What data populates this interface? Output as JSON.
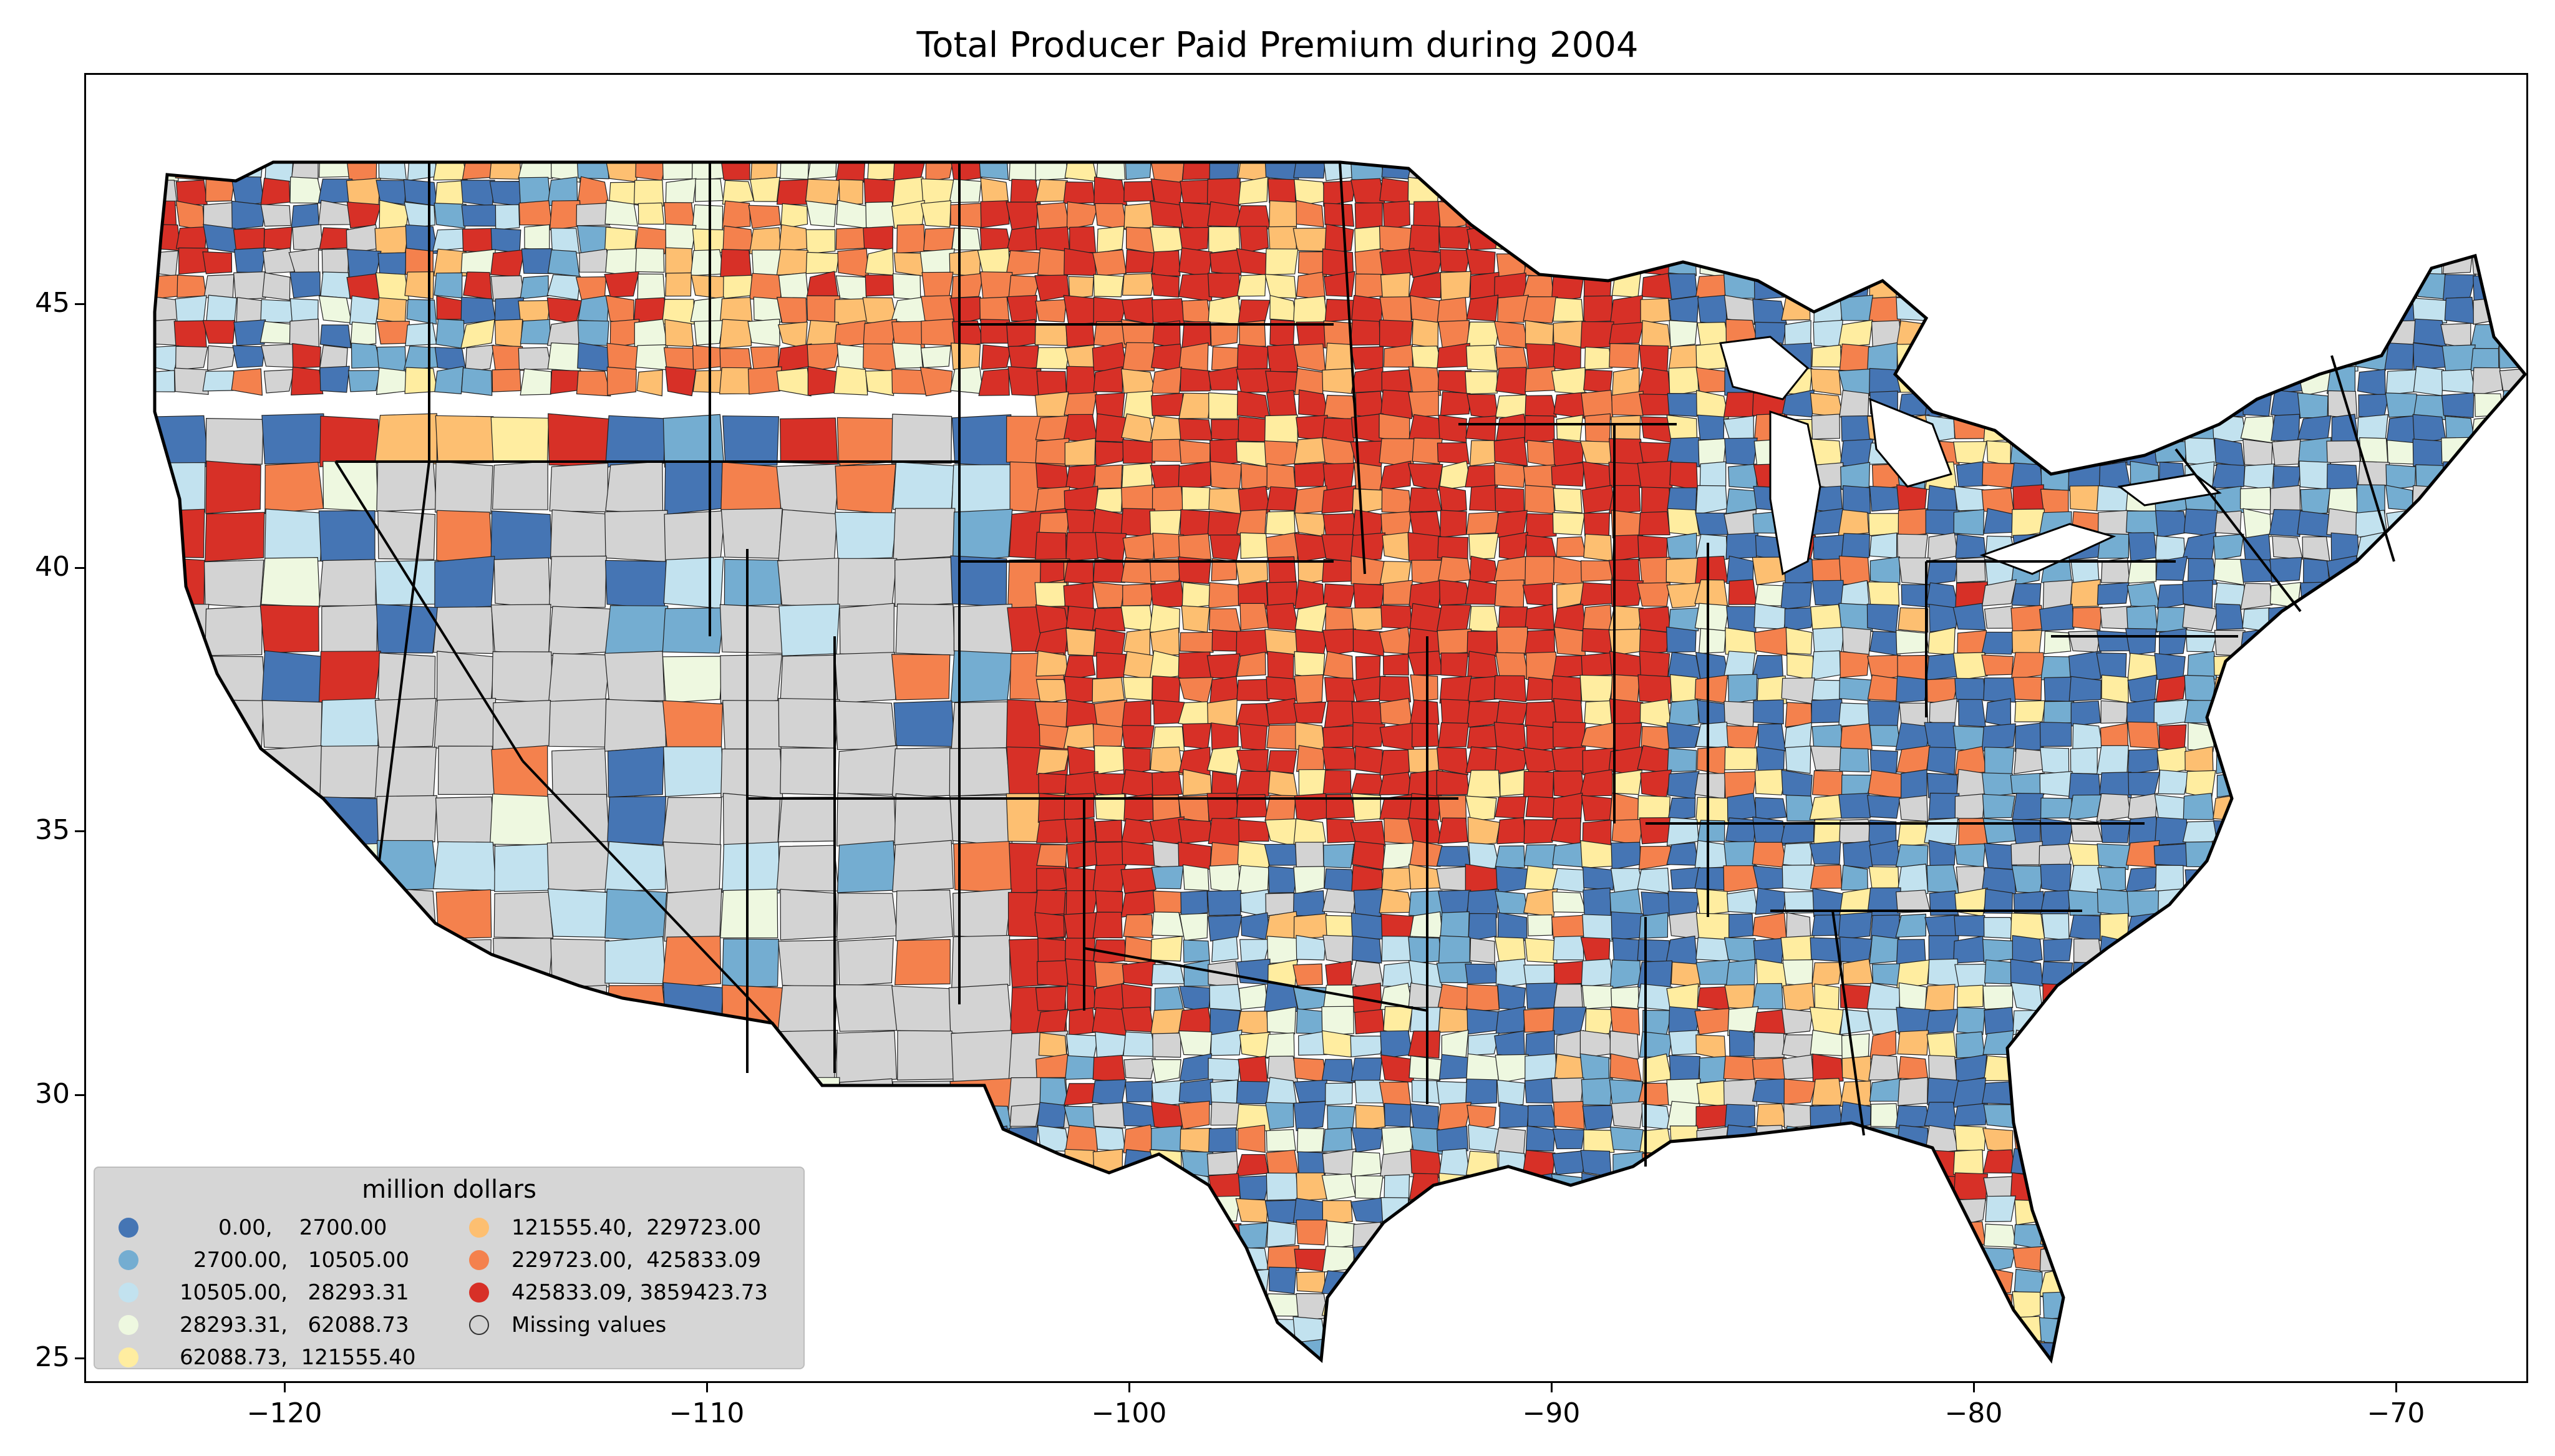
{
  "title": "Total Producer Paid Premium during 2004",
  "colors": {
    "c0": "#4575b4",
    "c1": "#74add1",
    "c2": "#c2e2ef",
    "c3": "#eef8e0",
    "c4": "#ffeda0",
    "c5": "#fdbf71",
    "c6": "#f4814d",
    "c7": "#d73027",
    "missing": "#d3d3d3",
    "border": "#222222",
    "state_border": "#000000"
  },
  "axes": {
    "x_ticks": [
      "−120",
      "−110",
      "−100",
      "−90",
      "−80",
      "−70"
    ],
    "y_ticks": [
      "45",
      "40",
      "35",
      "30",
      "25"
    ]
  },
  "legend": {
    "title": "million dollars",
    "items": [
      {
        "label": "0.00,    2700.00",
        "color_key": "c0"
      },
      {
        "label": "2700.00,   10505.00",
        "color_key": "c1"
      },
      {
        "label": "10505.00,   28293.31",
        "color_key": "c2"
      },
      {
        "label": "28293.31,   62088.73",
        "color_key": "c3"
      },
      {
        "label": "62088.73,  121555.40",
        "color_key": "c4"
      },
      {
        "label": "121555.40,  229723.00",
        "color_key": "c5"
      },
      {
        "label": "229723.00,  425833.09",
        "color_key": "c6"
      },
      {
        "label": "425833.09, 3859423.73",
        "color_key": "c7"
      },
      {
        "label": "Missing values",
        "color_key": "missing"
      }
    ]
  }
}
